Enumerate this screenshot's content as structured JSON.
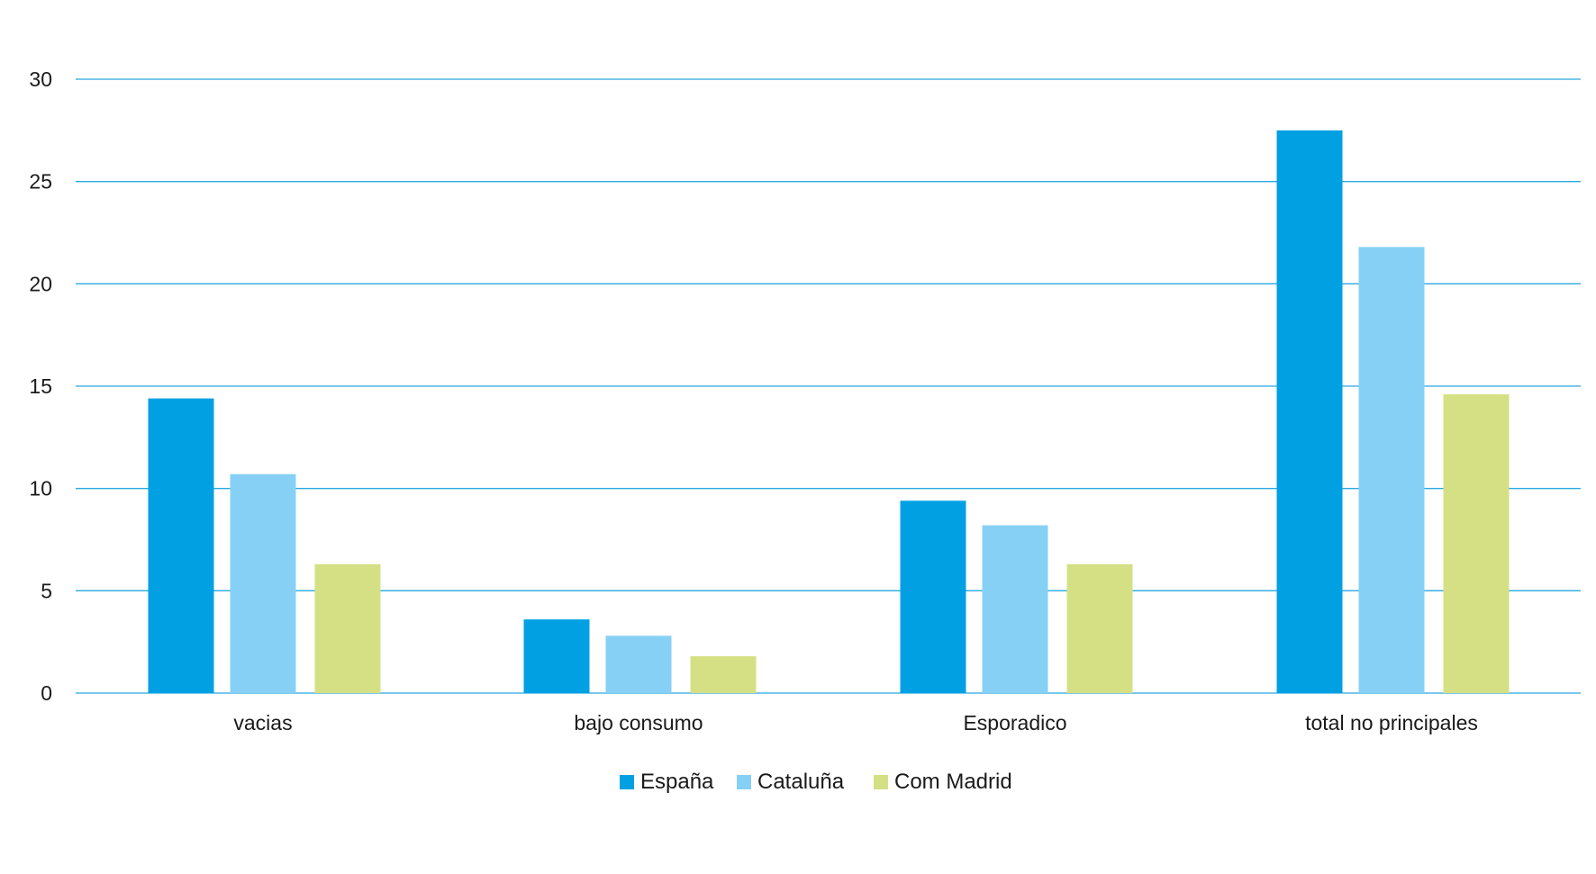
{
  "chart_data": {
    "type": "bar",
    "title": "",
    "xlabel": "",
    "ylabel": "",
    "ylim": [
      0,
      30
    ],
    "yticks": [
      0,
      5,
      10,
      15,
      20,
      25,
      30
    ],
    "grid": true,
    "legend_position": "bottom-center",
    "categories": [
      "vacias",
      "bajo consumo",
      "Esporadico",
      "total no principales"
    ],
    "series": [
      {
        "name": "España",
        "color": "#00a0e3",
        "values": [
          14.4,
          3.6,
          9.4,
          27.5
        ]
      },
      {
        "name": "Cataluña",
        "color": "#87d0f5",
        "values": [
          10.7,
          2.8,
          8.2,
          21.8
        ]
      },
      {
        "name": "Com Madrid",
        "color": "#d5e085",
        "values": [
          6.3,
          1.8,
          6.3,
          14.6
        ]
      }
    ],
    "gridline_color": "#29a8e0"
  }
}
